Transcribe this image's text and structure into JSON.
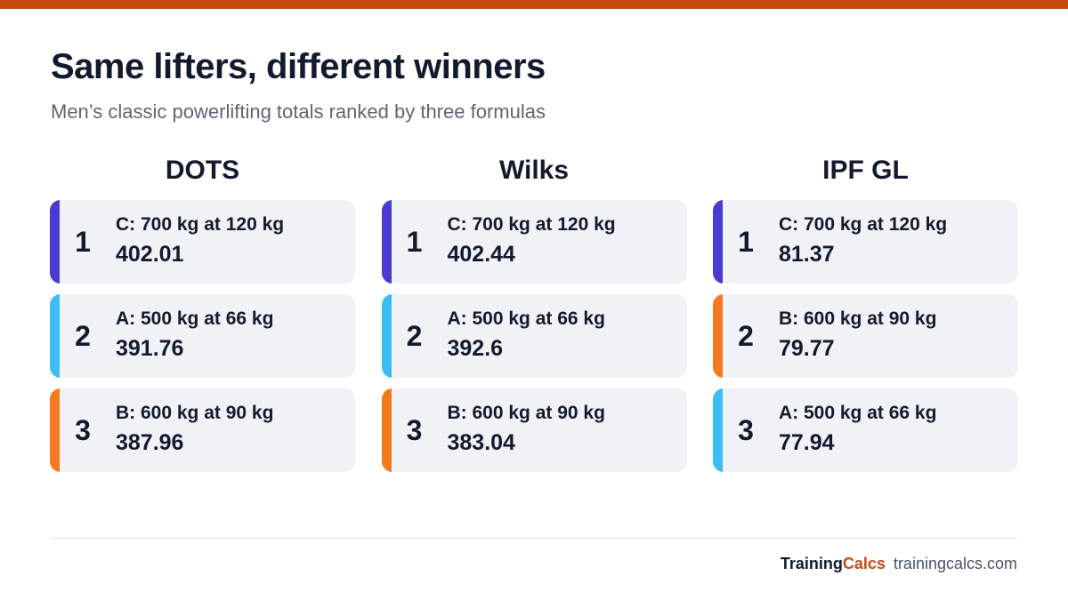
{
  "header": {
    "title": "Same lifters, different winners",
    "subtitle": "Men’s classic powerlifting totals ranked by three formulas"
  },
  "colors": {
    "top_bar": "#c84a12",
    "lifter_c": "#4a3bd1",
    "lifter_a": "#3bbdf5",
    "lifter_b": "#f57a1f",
    "card_bg": "#f0f2f6",
    "brand_accent": "#c84a12"
  },
  "columns": [
    {
      "heading": "DOTS",
      "entries": [
        {
          "rank": "1",
          "lifter": "C: 700 kg at 120 kg",
          "score": "402.01",
          "lifter_id": "C"
        },
        {
          "rank": "2",
          "lifter": "A: 500 kg at 66 kg",
          "score": "391.76",
          "lifter_id": "A"
        },
        {
          "rank": "3",
          "lifter": "B: 600 kg at 90 kg",
          "score": "387.96",
          "lifter_id": "B"
        }
      ]
    },
    {
      "heading": "Wilks",
      "entries": [
        {
          "rank": "1",
          "lifter": "C: 700 kg at 120 kg",
          "score": "402.44",
          "lifter_id": "C"
        },
        {
          "rank": "2",
          "lifter": "A: 500 kg at 66 kg",
          "score": "392.6",
          "lifter_id": "A"
        },
        {
          "rank": "3",
          "lifter": "B: 600 kg at 90 kg",
          "score": "383.04",
          "lifter_id": "B"
        }
      ]
    },
    {
      "heading": "IPF GL",
      "entries": [
        {
          "rank": "1",
          "lifter": "C: 700 kg at 120 kg",
          "score": "81.37",
          "lifter_id": "C"
        },
        {
          "rank": "2",
          "lifter": "B: 600 kg at 90 kg",
          "score": "79.77",
          "lifter_id": "B"
        },
        {
          "rank": "3",
          "lifter": "A: 500 kg at 66 kg",
          "score": "77.94",
          "lifter_id": "A"
        }
      ]
    }
  ],
  "footer": {
    "brand_part1": "Training",
    "brand_part2": "Calcs",
    "site": "trainingcalcs.com"
  }
}
